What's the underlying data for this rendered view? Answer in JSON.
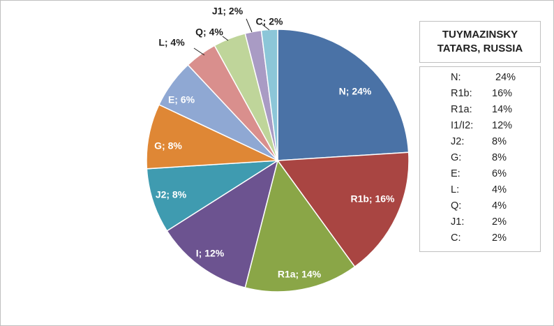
{
  "chart_data": {
    "type": "pie",
    "title": "TUYMAZINSKY TATARS, RUSSIA",
    "slices": [
      {
        "name": "N",
        "value": 24,
        "label": "N; 24%",
        "color": "#4a72a6"
      },
      {
        "name": "R1b",
        "value": 16,
        "label": "R1b; 16%",
        "color": "#a94542"
      },
      {
        "name": "R1a",
        "value": 14,
        "label": "R1a; 14%",
        "color": "#8aa647"
      },
      {
        "name": "I",
        "value": 12,
        "label": "I; 12%",
        "color": "#6c5390"
      },
      {
        "name": "J2",
        "value": 8,
        "label": "J2; 8%",
        "color": "#3f9bb0"
      },
      {
        "name": "G",
        "value": 8,
        "label": "G; 8%",
        "color": "#df8735"
      },
      {
        "name": "E",
        "value": 6,
        "label": "E; 6%",
        "color": "#8fa8d3"
      },
      {
        "name": "L",
        "value": 4,
        "label": "L; 4%",
        "color": "#d98f8d"
      },
      {
        "name": "Q",
        "value": 4,
        "label": "Q; 4%",
        "color": "#bfd59a"
      },
      {
        "name": "J1",
        "value": 2,
        "label": "J1; 2%",
        "color": "#a99bc4"
      },
      {
        "name": "C",
        "value": 2,
        "label": "C; 2%",
        "color": "#8cc6d8"
      }
    ],
    "legend": [
      {
        "name": "N:",
        "value": "24%"
      },
      {
        "name": "R1b:",
        "value": "16%"
      },
      {
        "name": "R1a:",
        "value": "14%"
      },
      {
        "name": "I1/I2:",
        "value": "12%"
      },
      {
        "name": "J2:",
        "value": "8%"
      },
      {
        "name": "G:",
        "value": "8%"
      },
      {
        "name": "E:",
        "value": "6%"
      },
      {
        "name": "L:",
        "value": "4%"
      },
      {
        "name": "Q:",
        "value": "4%"
      },
      {
        "name": "J1:",
        "value": "2%"
      },
      {
        "name": "C:",
        "value": "2%"
      }
    ]
  }
}
